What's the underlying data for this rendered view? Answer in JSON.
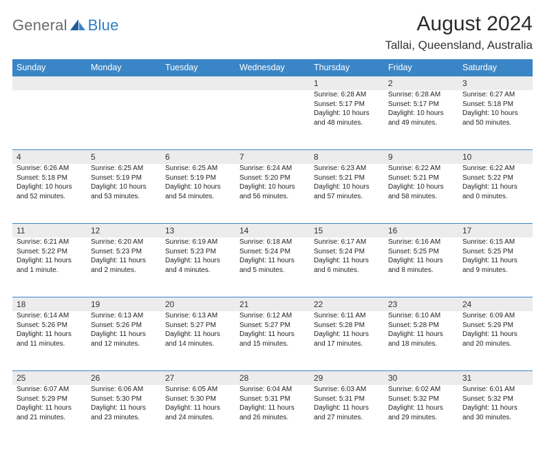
{
  "logo": {
    "part1": "General",
    "part2": "Blue"
  },
  "title": "August 2024",
  "location": "Tallai, Queensland, Australia",
  "colors": {
    "header_bg": "#3a85c6",
    "header_text": "#ffffff",
    "daynum_bg": "#ececec",
    "logo_gray": "#6b6b6b",
    "logo_blue": "#2d7fc1",
    "separator": "#3a85c6"
  },
  "weekdays": [
    "Sunday",
    "Monday",
    "Tuesday",
    "Wednesday",
    "Thursday",
    "Friday",
    "Saturday"
  ],
  "weeks": [
    {
      "numbers": [
        "",
        "",
        "",
        "",
        "1",
        "2",
        "3"
      ],
      "cells": [
        null,
        null,
        null,
        null,
        {
          "sunrise": "Sunrise: 6:28 AM",
          "sunset": "Sunset: 5:17 PM",
          "daylight": "Daylight: 10 hours and 48 minutes."
        },
        {
          "sunrise": "Sunrise: 6:28 AM",
          "sunset": "Sunset: 5:17 PM",
          "daylight": "Daylight: 10 hours and 49 minutes."
        },
        {
          "sunrise": "Sunrise: 6:27 AM",
          "sunset": "Sunset: 5:18 PM",
          "daylight": "Daylight: 10 hours and 50 minutes."
        }
      ]
    },
    {
      "numbers": [
        "4",
        "5",
        "6",
        "7",
        "8",
        "9",
        "10"
      ],
      "cells": [
        {
          "sunrise": "Sunrise: 6:26 AM",
          "sunset": "Sunset: 5:18 PM",
          "daylight": "Daylight: 10 hours and 52 minutes."
        },
        {
          "sunrise": "Sunrise: 6:25 AM",
          "sunset": "Sunset: 5:19 PM",
          "daylight": "Daylight: 10 hours and 53 minutes."
        },
        {
          "sunrise": "Sunrise: 6:25 AM",
          "sunset": "Sunset: 5:19 PM",
          "daylight": "Daylight: 10 hours and 54 minutes."
        },
        {
          "sunrise": "Sunrise: 6:24 AM",
          "sunset": "Sunset: 5:20 PM",
          "daylight": "Daylight: 10 hours and 56 minutes."
        },
        {
          "sunrise": "Sunrise: 6:23 AM",
          "sunset": "Sunset: 5:21 PM",
          "daylight": "Daylight: 10 hours and 57 minutes."
        },
        {
          "sunrise": "Sunrise: 6:22 AM",
          "sunset": "Sunset: 5:21 PM",
          "daylight": "Daylight: 10 hours and 58 minutes."
        },
        {
          "sunrise": "Sunrise: 6:22 AM",
          "sunset": "Sunset: 5:22 PM",
          "daylight": "Daylight: 11 hours and 0 minutes."
        }
      ]
    },
    {
      "numbers": [
        "11",
        "12",
        "13",
        "14",
        "15",
        "16",
        "17"
      ],
      "cells": [
        {
          "sunrise": "Sunrise: 6:21 AM",
          "sunset": "Sunset: 5:22 PM",
          "daylight": "Daylight: 11 hours and 1 minute."
        },
        {
          "sunrise": "Sunrise: 6:20 AM",
          "sunset": "Sunset: 5:23 PM",
          "daylight": "Daylight: 11 hours and 2 minutes."
        },
        {
          "sunrise": "Sunrise: 6:19 AM",
          "sunset": "Sunset: 5:23 PM",
          "daylight": "Daylight: 11 hours and 4 minutes."
        },
        {
          "sunrise": "Sunrise: 6:18 AM",
          "sunset": "Sunset: 5:24 PM",
          "daylight": "Daylight: 11 hours and 5 minutes."
        },
        {
          "sunrise": "Sunrise: 6:17 AM",
          "sunset": "Sunset: 5:24 PM",
          "daylight": "Daylight: 11 hours and 6 minutes."
        },
        {
          "sunrise": "Sunrise: 6:16 AM",
          "sunset": "Sunset: 5:25 PM",
          "daylight": "Daylight: 11 hours and 8 minutes."
        },
        {
          "sunrise": "Sunrise: 6:15 AM",
          "sunset": "Sunset: 5:25 PM",
          "daylight": "Daylight: 11 hours and 9 minutes."
        }
      ]
    },
    {
      "numbers": [
        "18",
        "19",
        "20",
        "21",
        "22",
        "23",
        "24"
      ],
      "cells": [
        {
          "sunrise": "Sunrise: 6:14 AM",
          "sunset": "Sunset: 5:26 PM",
          "daylight": "Daylight: 11 hours and 11 minutes."
        },
        {
          "sunrise": "Sunrise: 6:13 AM",
          "sunset": "Sunset: 5:26 PM",
          "daylight": "Daylight: 11 hours and 12 minutes."
        },
        {
          "sunrise": "Sunrise: 6:13 AM",
          "sunset": "Sunset: 5:27 PM",
          "daylight": "Daylight: 11 hours and 14 minutes."
        },
        {
          "sunrise": "Sunrise: 6:12 AM",
          "sunset": "Sunset: 5:27 PM",
          "daylight": "Daylight: 11 hours and 15 minutes."
        },
        {
          "sunrise": "Sunrise: 6:11 AM",
          "sunset": "Sunset: 5:28 PM",
          "daylight": "Daylight: 11 hours and 17 minutes."
        },
        {
          "sunrise": "Sunrise: 6:10 AM",
          "sunset": "Sunset: 5:28 PM",
          "daylight": "Daylight: 11 hours and 18 minutes."
        },
        {
          "sunrise": "Sunrise: 6:09 AM",
          "sunset": "Sunset: 5:29 PM",
          "daylight": "Daylight: 11 hours and 20 minutes."
        }
      ]
    },
    {
      "numbers": [
        "25",
        "26",
        "27",
        "28",
        "29",
        "30",
        "31"
      ],
      "cells": [
        {
          "sunrise": "Sunrise: 6:07 AM",
          "sunset": "Sunset: 5:29 PM",
          "daylight": "Daylight: 11 hours and 21 minutes."
        },
        {
          "sunrise": "Sunrise: 6:06 AM",
          "sunset": "Sunset: 5:30 PM",
          "daylight": "Daylight: 11 hours and 23 minutes."
        },
        {
          "sunrise": "Sunrise: 6:05 AM",
          "sunset": "Sunset: 5:30 PM",
          "daylight": "Daylight: 11 hours and 24 minutes."
        },
        {
          "sunrise": "Sunrise: 6:04 AM",
          "sunset": "Sunset: 5:31 PM",
          "daylight": "Daylight: 11 hours and 26 minutes."
        },
        {
          "sunrise": "Sunrise: 6:03 AM",
          "sunset": "Sunset: 5:31 PM",
          "daylight": "Daylight: 11 hours and 27 minutes."
        },
        {
          "sunrise": "Sunrise: 6:02 AM",
          "sunset": "Sunset: 5:32 PM",
          "daylight": "Daylight: 11 hours and 29 minutes."
        },
        {
          "sunrise": "Sunrise: 6:01 AM",
          "sunset": "Sunset: 5:32 PM",
          "daylight": "Daylight: 11 hours and 30 minutes."
        }
      ]
    }
  ]
}
